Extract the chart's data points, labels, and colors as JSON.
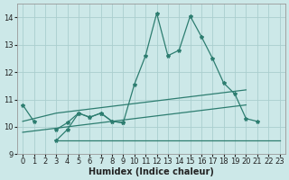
{
  "x": [
    0,
    1,
    2,
    3,
    4,
    5,
    6,
    7,
    8,
    9,
    10,
    11,
    12,
    13,
    14,
    15,
    16,
    17,
    18,
    19,
    20,
    21,
    22,
    23
  ],
  "line_main": [
    10.8,
    10.2,
    null,
    9.9,
    10.15,
    10.5,
    10.35,
    10.5,
    10.2,
    10.15,
    11.55,
    12.6,
    14.15,
    12.6,
    12.8,
    14.05,
    13.3,
    12.5,
    11.6,
    11.2,
    10.3,
    10.2,
    null,
    null
  ],
  "line_low": [
    null,
    null,
    null,
    9.5,
    9.9,
    10.5,
    10.35,
    10.5,
    10.2,
    10.15,
    null,
    null,
    null,
    null,
    null,
    null,
    null,
    null,
    null,
    null,
    null,
    null,
    null,
    null
  ],
  "line_flat": [
    null,
    null,
    null,
    9.5,
    9.5,
    9.5,
    9.5,
    9.5,
    9.5,
    9.5,
    9.5,
    9.5,
    9.5,
    9.5,
    9.5,
    9.5,
    9.5,
    9.5,
    9.5,
    9.5,
    9.5,
    9.5,
    9.5,
    9.5
  ],
  "trend_upper": [
    10.2,
    10.3,
    10.4,
    10.5,
    10.55,
    10.6,
    10.65,
    10.7,
    10.75,
    10.8,
    10.85,
    10.9,
    10.95,
    11.0,
    11.05,
    11.1,
    11.15,
    11.2,
    11.25,
    11.3,
    11.35,
    null,
    null,
    null
  ],
  "trend_lower": [
    9.8,
    9.85,
    9.9,
    9.95,
    10.0,
    10.05,
    10.1,
    10.15,
    10.2,
    10.25,
    10.3,
    10.35,
    10.4,
    10.45,
    10.5,
    10.55,
    10.6,
    10.65,
    10.7,
    10.75,
    10.8,
    null,
    null,
    null
  ],
  "color": "#2d7d70",
  "bg_color": "#cce8e8",
  "grid_color": "#aacece",
  "xlabel": "Humidex (Indice chaleur)",
  "ylim": [
    9,
    14.5
  ],
  "xlim": [
    -0.5,
    23.5
  ],
  "yticks": [
    9,
    10,
    11,
    12,
    13,
    14
  ],
  "xticks": [
    0,
    1,
    2,
    3,
    4,
    5,
    6,
    7,
    8,
    9,
    10,
    11,
    12,
    13,
    14,
    15,
    16,
    17,
    18,
    19,
    20,
    21,
    22,
    23
  ]
}
